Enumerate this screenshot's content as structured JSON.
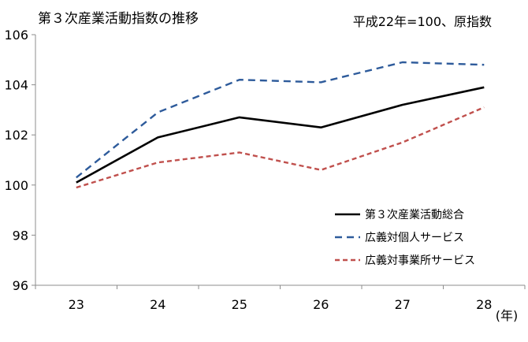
{
  "chart_data": {
    "type": "line",
    "title": "第３次産業活動指数の推移",
    "note": "平成22年=100、原指数",
    "x_unit": "(年)",
    "categories": [
      "23",
      "24",
      "25",
      "26",
      "27",
      "28"
    ],
    "ylim": [
      96,
      106
    ],
    "yticks": [
      "96",
      "98",
      "100",
      "102",
      "104",
      "106"
    ],
    "grid": false,
    "legend_position": "bottom-right",
    "series": [
      {
        "name": "第３次産業活動総合",
        "values": [
          100.1,
          101.9,
          102.7,
          102.3,
          103.2,
          103.9
        ],
        "color": "#000000",
        "style": "solid"
      },
      {
        "name": "広義対個人サービス",
        "values": [
          100.3,
          102.9,
          104.2,
          104.1,
          104.9,
          104.8
        ],
        "color": "#2e5b9b",
        "style": "dashed"
      },
      {
        "name": "広義対事業所サービス",
        "values": [
          99.9,
          100.9,
          101.3,
          100.6,
          101.7,
          103.1
        ],
        "color": "#c0504d",
        "style": "dashed"
      }
    ]
  }
}
